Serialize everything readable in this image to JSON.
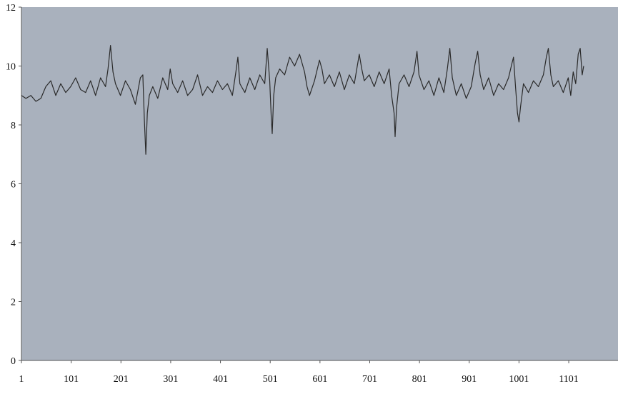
{
  "chart_data": {
    "type": "line",
    "title": "",
    "xlabel": "",
    "ylabel": "",
    "x_ticks": [
      1,
      101,
      201,
      301,
      401,
      501,
      601,
      701,
      801,
      901,
      1001,
      1101
    ],
    "x_tick_labels": [
      "1",
      "101",
      "201",
      "301",
      "401",
      "501",
      "601",
      "701",
      "801",
      "901",
      "1001",
      "1101"
    ],
    "xlim": [
      1,
      1200
    ],
    "y_ticks": [
      0,
      2,
      4,
      6,
      8,
      10,
      12
    ],
    "y_tick_labels": [
      "0",
      "2",
      "4",
      "6",
      "8",
      "10",
      "12"
    ],
    "ylim": [
      0,
      12
    ],
    "grid": false,
    "legend": "none",
    "colors": {
      "plot_background": "#a9b1bd",
      "line": "#2a2a2a",
      "axis": "#555555"
    },
    "series": [
      {
        "values": [
          [
            1,
            9.0
          ],
          [
            10,
            8.9
          ],
          [
            20,
            9.0
          ],
          [
            30,
            8.8
          ],
          [
            40,
            8.9
          ],
          [
            50,
            9.3
          ],
          [
            60,
            9.5
          ],
          [
            70,
            9.0
          ],
          [
            80,
            9.4
          ],
          [
            90,
            9.1
          ],
          [
            100,
            9.3
          ],
          [
            110,
            9.6
          ],
          [
            120,
            9.2
          ],
          [
            130,
            9.1
          ],
          [
            140,
            9.5
          ],
          [
            150,
            9.0
          ],
          [
            160,
            9.6
          ],
          [
            170,
            9.3
          ],
          [
            175,
            9.9
          ],
          [
            180,
            10.7
          ],
          [
            185,
            9.8
          ],
          [
            190,
            9.4
          ],
          [
            200,
            9.0
          ],
          [
            210,
            9.5
          ],
          [
            220,
            9.2
          ],
          [
            230,
            8.7
          ],
          [
            240,
            9.6
          ],
          [
            245,
            9.7
          ],
          [
            248,
            8.2
          ],
          [
            251,
            7.0
          ],
          [
            254,
            8.4
          ],
          [
            258,
            9.0
          ],
          [
            265,
            9.3
          ],
          [
            275,
            8.9
          ],
          [
            285,
            9.6
          ],
          [
            295,
            9.2
          ],
          [
            300,
            9.9
          ],
          [
            305,
            9.4
          ],
          [
            315,
            9.1
          ],
          [
            325,
            9.5
          ],
          [
            335,
            9.0
          ],
          [
            345,
            9.2
          ],
          [
            355,
            9.7
          ],
          [
            365,
            9.0
          ],
          [
            375,
            9.3
          ],
          [
            385,
            9.1
          ],
          [
            395,
            9.5
          ],
          [
            405,
            9.2
          ],
          [
            415,
            9.4
          ],
          [
            425,
            9.0
          ],
          [
            432,
            9.8
          ],
          [
            436,
            10.3
          ],
          [
            440,
            9.4
          ],
          [
            450,
            9.1
          ],
          [
            460,
            9.6
          ],
          [
            470,
            9.2
          ],
          [
            480,
            9.7
          ],
          [
            490,
            9.4
          ],
          [
            495,
            10.6
          ],
          [
            500,
            9.5
          ],
          [
            503,
            8.3
          ],
          [
            505,
            7.7
          ],
          [
            508,
            9.0
          ],
          [
            512,
            9.6
          ],
          [
            520,
            9.9
          ],
          [
            530,
            9.7
          ],
          [
            540,
            10.3
          ],
          [
            550,
            10.0
          ],
          [
            560,
            10.4
          ],
          [
            570,
            9.8
          ],
          [
            575,
            9.3
          ],
          [
            580,
            9.0
          ],
          [
            590,
            9.5
          ],
          [
            600,
            10.2
          ],
          [
            605,
            9.9
          ],
          [
            610,
            9.4
          ],
          [
            620,
            9.7
          ],
          [
            630,
            9.3
          ],
          [
            640,
            9.8
          ],
          [
            650,
            9.2
          ],
          [
            660,
            9.7
          ],
          [
            670,
            9.4
          ],
          [
            680,
            10.4
          ],
          [
            685,
            9.9
          ],
          [
            690,
            9.5
          ],
          [
            700,
            9.7
          ],
          [
            710,
            9.3
          ],
          [
            720,
            9.8
          ],
          [
            730,
            9.4
          ],
          [
            740,
            9.9
          ],
          [
            745,
            9.0
          ],
          [
            750,
            8.4
          ],
          [
            752,
            7.6
          ],
          [
            755,
            8.6
          ],
          [
            760,
            9.4
          ],
          [
            770,
            9.7
          ],
          [
            780,
            9.3
          ],
          [
            790,
            9.8
          ],
          [
            796,
            10.5
          ],
          [
            800,
            9.7
          ],
          [
            810,
            9.2
          ],
          [
            820,
            9.5
          ],
          [
            830,
            9.0
          ],
          [
            840,
            9.6
          ],
          [
            850,
            9.1
          ],
          [
            857,
            9.9
          ],
          [
            862,
            10.6
          ],
          [
            867,
            9.6
          ],
          [
            875,
            9.0
          ],
          [
            885,
            9.4
          ],
          [
            895,
            8.9
          ],
          [
            905,
            9.3
          ],
          [
            913,
            10.1
          ],
          [
            918,
            10.5
          ],
          [
            923,
            9.7
          ],
          [
            930,
            9.2
          ],
          [
            940,
            9.6
          ],
          [
            950,
            9.0
          ],
          [
            960,
            9.4
          ],
          [
            970,
            9.2
          ],
          [
            980,
            9.6
          ],
          [
            987,
            10.1
          ],
          [
            990,
            10.3
          ],
          [
            994,
            9.3
          ],
          [
            998,
            8.4
          ],
          [
            1001,
            8.1
          ],
          [
            1004,
            8.6
          ],
          [
            1010,
            9.4
          ],
          [
            1020,
            9.1
          ],
          [
            1030,
            9.5
          ],
          [
            1040,
            9.3
          ],
          [
            1050,
            9.7
          ],
          [
            1056,
            10.3
          ],
          [
            1060,
            10.6
          ],
          [
            1065,
            9.7
          ],
          [
            1070,
            9.3
          ],
          [
            1080,
            9.5
          ],
          [
            1090,
            9.1
          ],
          [
            1100,
            9.6
          ],
          [
            1105,
            9.0
          ],
          [
            1110,
            9.8
          ],
          [
            1115,
            9.4
          ],
          [
            1120,
            10.4
          ],
          [
            1124,
            10.6
          ],
          [
            1128,
            9.7
          ],
          [
            1131,
            10.0
          ]
        ]
      }
    ]
  }
}
